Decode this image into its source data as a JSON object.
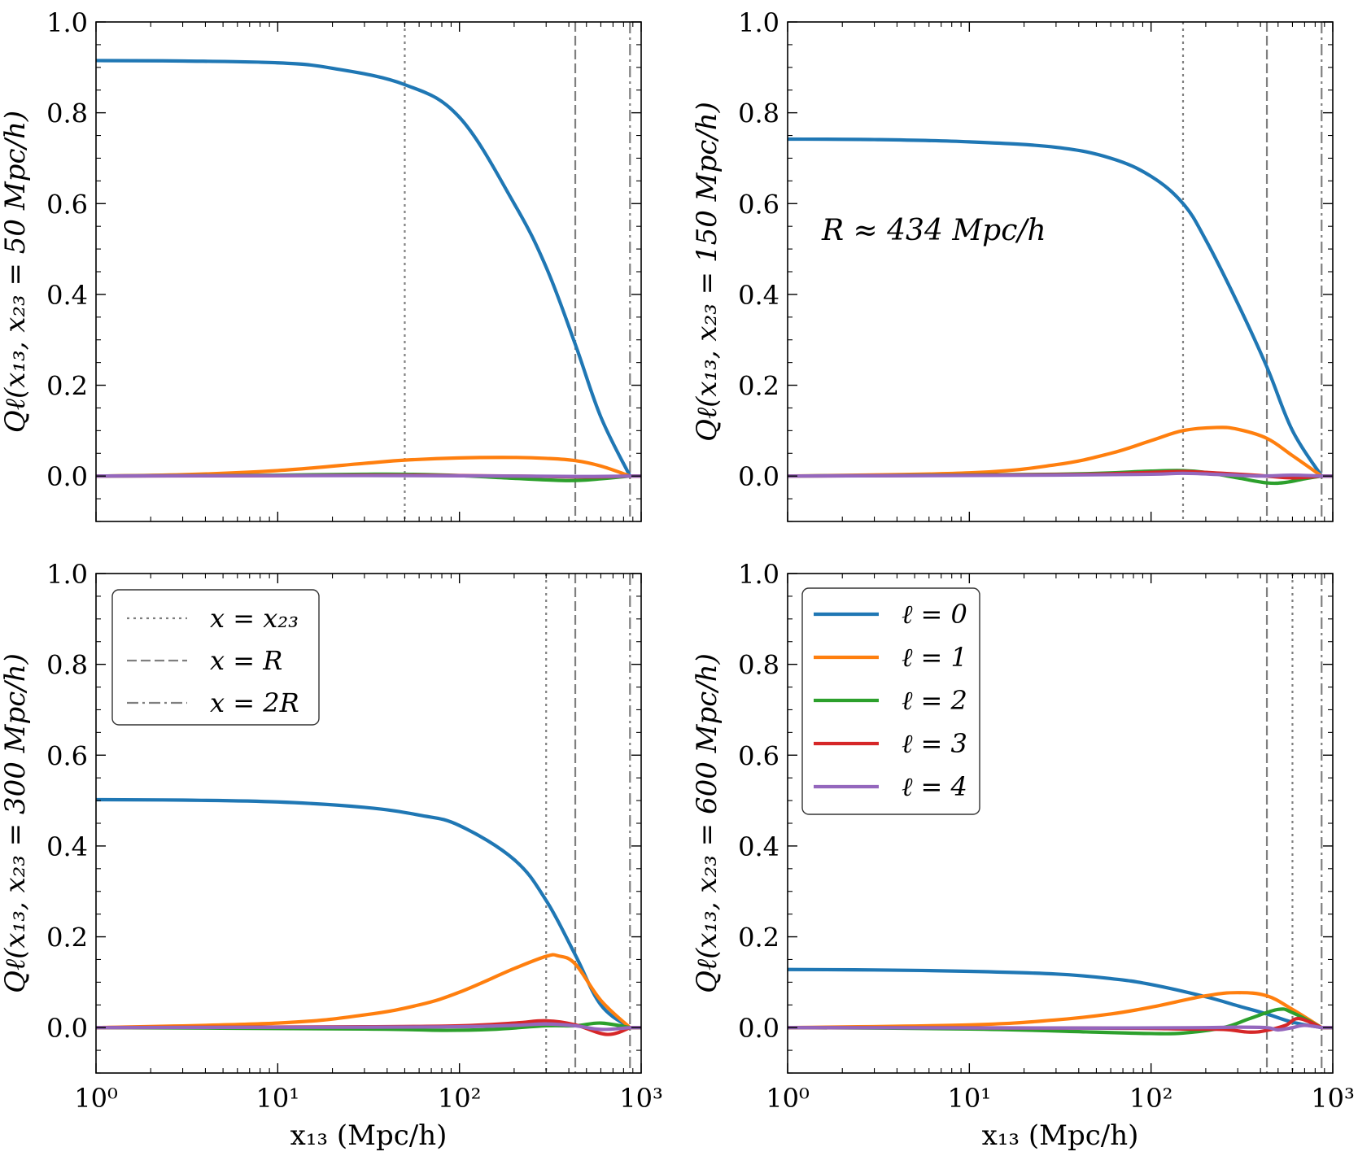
{
  "figure": {
    "xlabel": "x₁₃ (Mpc/h)",
    "xtick_labels": [
      "10⁰",
      "10¹",
      "10²",
      "10³"
    ],
    "ytick_labels": [
      "0.0",
      "0.2",
      "0.4",
      "0.6",
      "0.8",
      "1.0"
    ],
    "annotation": "R ≈ 434 Mpc/h",
    "line_legend": [
      {
        "label": "x = x₂₃",
        "style": "dotted"
      },
      {
        "label": "x = R",
        "style": "dashed"
      },
      {
        "label": "x = 2R",
        "style": "dashdot"
      }
    ],
    "series_legend": [
      {
        "label": "ℓ = 0",
        "color": "#1f77b4"
      },
      {
        "label": "ℓ = 1",
        "color": "#ff7f0e"
      },
      {
        "label": "ℓ = 2",
        "color": "#2ca02c"
      },
      {
        "label": "ℓ = 3",
        "color": "#d62728"
      },
      {
        "label": "ℓ = 4",
        "color": "#9467bd"
      }
    ]
  },
  "chart_data": [
    {
      "type": "line",
      "ylabel": "Qℓ(x₁₃, x₂₃ = 50 Mpc/h)",
      "xscale": "log",
      "xlim": [
        1,
        1000
      ],
      "ylim": [
        -0.1,
        1.0
      ],
      "grid": false,
      "vlines": [
        {
          "x": 50,
          "style": "dotted"
        },
        {
          "x": 434,
          "style": "dashed"
        },
        {
          "x": 868,
          "style": "dashdot"
        }
      ],
      "series": [
        {
          "name": "ℓ = 0",
          "color": "#1f77b4",
          "x": [
            1,
            3,
            10,
            20,
            50,
            100,
            200,
            300,
            434,
            600,
            868
          ],
          "y": [
            0.915,
            0.914,
            0.91,
            0.898,
            0.862,
            0.79,
            0.6,
            0.46,
            0.29,
            0.13,
            0.0
          ]
        },
        {
          "name": "ℓ = 1",
          "color": "#ff7f0e",
          "x": [
            1,
            3,
            10,
            30,
            50,
            100,
            200,
            300,
            434,
            600,
            868
          ],
          "y": [
            0.0,
            0.003,
            0.012,
            0.028,
            0.035,
            0.04,
            0.041,
            0.039,
            0.034,
            0.022,
            0.0
          ]
        },
        {
          "name": "ℓ = 2",
          "color": "#2ca02c",
          "x": [
            1,
            10,
            30,
            50,
            100,
            200,
            400,
            600,
            868
          ],
          "y": [
            0.0,
            0.002,
            0.004,
            0.004,
            0.001,
            -0.005,
            -0.01,
            -0.006,
            0.0
          ]
        },
        {
          "name": "ℓ = 3",
          "color": "#d62728",
          "x": [
            1,
            10,
            50,
            200,
            500,
            868
          ],
          "y": [
            0.0,
            0.001,
            0.002,
            0.0,
            -0.002,
            0.0
          ]
        },
        {
          "name": "ℓ = 4",
          "color": "#9467bd",
          "x": [
            1,
            10,
            50,
            200,
            500,
            868
          ],
          "y": [
            0.0,
            0.001,
            0.001,
            0.0,
            -0.001,
            0.0
          ]
        }
      ]
    },
    {
      "type": "line",
      "ylabel": "Qℓ(x₁₃, x₂₃ = 150 Mpc/h)",
      "xscale": "log",
      "xlim": [
        1,
        1000
      ],
      "ylim": [
        -0.1,
        1.0
      ],
      "grid": false,
      "annotation": "R ≈ 434 Mpc/h",
      "vlines": [
        {
          "x": 150,
          "style": "dotted"
        },
        {
          "x": 434,
          "style": "dashed"
        },
        {
          "x": 868,
          "style": "dashdot"
        }
      ],
      "series": [
        {
          "name": "ℓ = 0",
          "color": "#1f77b4",
          "x": [
            1,
            3,
            10,
            30,
            60,
            100,
            150,
            200,
            300,
            434,
            600,
            868
          ],
          "y": [
            0.742,
            0.741,
            0.736,
            0.724,
            0.7,
            0.66,
            0.6,
            0.52,
            0.38,
            0.24,
            0.1,
            0.0
          ]
        },
        {
          "name": "ℓ = 1",
          "color": "#ff7f0e",
          "x": [
            1,
            10,
            30,
            60,
            100,
            150,
            230,
            300,
            434,
            600,
            868
          ],
          "y": [
            0.0,
            0.007,
            0.025,
            0.05,
            0.078,
            0.1,
            0.107,
            0.103,
            0.083,
            0.045,
            0.0
          ]
        },
        {
          "name": "ℓ = 2",
          "color": "#2ca02c",
          "x": [
            1,
            30,
            100,
            150,
            200,
            300,
            434,
            550,
            700,
            868
          ],
          "y": [
            0.0,
            0.004,
            0.011,
            0.012,
            0.008,
            -0.004,
            -0.015,
            -0.014,
            -0.006,
            0.0
          ]
        },
        {
          "name": "ℓ = 3",
          "color": "#d62728",
          "x": [
            1,
            30,
            100,
            150,
            250,
            400,
            600,
            868
          ],
          "y": [
            0.0,
            0.003,
            0.008,
            0.01,
            0.006,
            0.001,
            -0.004,
            0.0
          ]
        },
        {
          "name": "ℓ = 4",
          "color": "#9467bd",
          "x": [
            1,
            30,
            100,
            150,
            250,
            400,
            600,
            868
          ],
          "y": [
            0.0,
            0.002,
            0.004,
            0.006,
            0.003,
            0.0,
            0.002,
            0.0
          ]
        }
      ]
    },
    {
      "type": "line",
      "ylabel": "Qℓ(x₁₃, x₂₃ = 300 Mpc/h)",
      "xscale": "log",
      "xlim": [
        1,
        1000
      ],
      "ylim": [
        -0.1,
        1.0
      ],
      "grid": false,
      "vlines": [
        {
          "x": 300,
          "style": "dotted"
        },
        {
          "x": 434,
          "style": "dashed"
        },
        {
          "x": 868,
          "style": "dashdot"
        }
      ],
      "series": [
        {
          "name": "ℓ = 0",
          "color": "#1f77b4",
          "x": [
            1,
            3,
            10,
            30,
            60,
            100,
            200,
            300,
            434,
            600,
            868
          ],
          "y": [
            0.502,
            0.501,
            0.497,
            0.485,
            0.468,
            0.445,
            0.37,
            0.28,
            0.16,
            0.05,
            0.0
          ]
        },
        {
          "name": "ℓ = 1",
          "color": "#ff7f0e",
          "x": [
            1,
            10,
            30,
            60,
            100,
            200,
            300,
            350,
            434,
            600,
            868
          ],
          "y": [
            0.0,
            0.01,
            0.028,
            0.05,
            0.078,
            0.13,
            0.157,
            0.158,
            0.14,
            0.06,
            0.0
          ]
        },
        {
          "name": "ℓ = 2",
          "color": "#2ca02c",
          "x": [
            1,
            30,
            80,
            150,
            300,
            434,
            600,
            868
          ],
          "y": [
            0.0,
            -0.003,
            -0.006,
            -0.004,
            0.004,
            0.004,
            0.01,
            0.0
          ]
        },
        {
          "name": "ℓ = 3",
          "color": "#d62728",
          "x": [
            1,
            30,
            100,
            200,
            300,
            434,
            650,
            868
          ],
          "y": [
            0.0,
            0.002,
            0.004,
            0.01,
            0.015,
            0.006,
            -0.015,
            0.0
          ]
        },
        {
          "name": "ℓ = 4",
          "color": "#9467bd",
          "x": [
            1,
            30,
            100,
            200,
            300,
            434,
            600,
            868
          ],
          "y": [
            0.0,
            0.001,
            0.002,
            0.005,
            0.008,
            0.004,
            -0.004,
            0.0
          ]
        }
      ]
    },
    {
      "type": "line",
      "ylabel": "Qℓ(x₁₃, x₂₃ = 600 Mpc/h)",
      "xscale": "log",
      "xlim": [
        1,
        1000
      ],
      "ylim": [
        -0.1,
        1.0
      ],
      "grid": false,
      "vlines": [
        {
          "x": 434,
          "style": "dashed"
        },
        {
          "x": 600,
          "style": "dotted"
        },
        {
          "x": 868,
          "style": "dashdot"
        }
      ],
      "series": [
        {
          "name": "ℓ = 0",
          "color": "#1f77b4",
          "x": [
            1,
            3,
            10,
            30,
            60,
            100,
            200,
            300,
            434,
            600,
            868
          ],
          "y": [
            0.128,
            0.127,
            0.124,
            0.118,
            0.108,
            0.095,
            0.068,
            0.048,
            0.03,
            0.012,
            0.0
          ]
        },
        {
          "name": "ℓ = 1",
          "color": "#ff7f0e",
          "x": [
            1,
            10,
            30,
            60,
            100,
            200,
            300,
            434,
            600,
            868
          ],
          "y": [
            0.0,
            0.006,
            0.017,
            0.03,
            0.045,
            0.07,
            0.077,
            0.07,
            0.04,
            0.0
          ]
        },
        {
          "name": "ℓ = 2",
          "color": "#2ca02c",
          "x": [
            1,
            10,
            50,
            100,
            150,
            250,
            350,
            500,
            600,
            868
          ],
          "y": [
            0.0,
            -0.003,
            -0.01,
            -0.013,
            -0.012,
            0.0,
            0.02,
            0.04,
            0.033,
            0.0
          ]
        },
        {
          "name": "ℓ = 3",
          "color": "#d62728",
          "x": [
            1,
            50,
            150,
            250,
            350,
            434,
            550,
            650,
            868
          ],
          "y": [
            0.0,
            -0.001,
            -0.003,
            -0.004,
            -0.01,
            -0.006,
            0.005,
            0.02,
            0.0
          ]
        },
        {
          "name": "ℓ = 4",
          "color": "#9467bd",
          "x": [
            1,
            50,
            200,
            300,
            434,
            500,
            600,
            700,
            868
          ],
          "y": [
            0.0,
            -0.001,
            0.0,
            0.001,
            0.0,
            -0.005,
            0.0,
            0.005,
            0.0
          ]
        }
      ]
    }
  ]
}
